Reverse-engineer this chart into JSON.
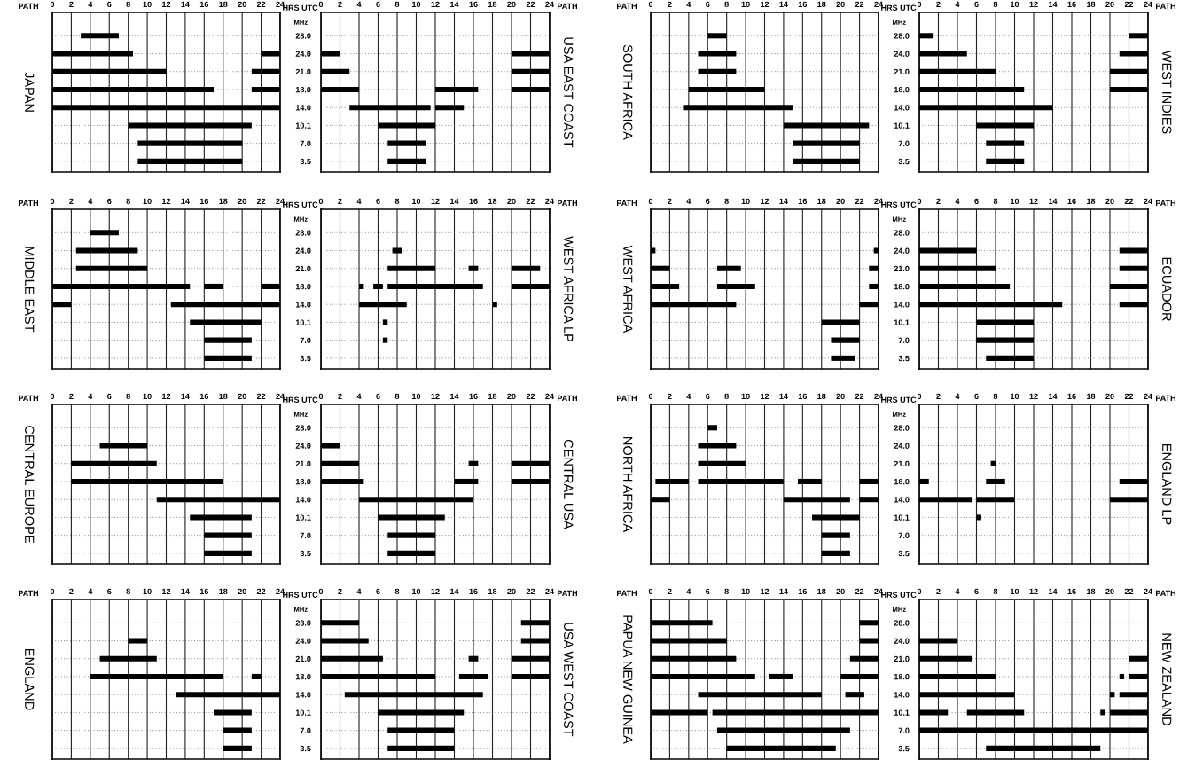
{
  "chart_data": [
    {
      "type": "bar",
      "orientation": "horizontal",
      "title": "JAPAN",
      "xlabel": "HRS UTC",
      "annotations": [
        "PATH"
      ],
      "tick_labels": "x",
      "grid": true,
      "xlim": [
        0,
        24
      ],
      "xticks": [
        0,
        2,
        4,
        6,
        8,
        10,
        12,
        14,
        16,
        18,
        20,
        22,
        24
      ],
      "categories": [
        "28.0",
        "24.0",
        "21.0",
        "18.0",
        "14.0",
        "10.1",
        "7.0",
        "3.5"
      ],
      "series": [
        {
          "color": "#000000",
          "base": [
            3,
            0,
            0,
            0,
            0,
            8,
            9,
            9
          ],
          "values": [
            4,
            8.5,
            12,
            17,
            24,
            13,
            11,
            11
          ]
        },
        {
          "color": "#000000",
          "base": [
            null,
            22,
            21,
            21,
            null,
            null,
            null,
            null
          ],
          "values": [
            null,
            2,
            3,
            3,
            null,
            null,
            null,
            null
          ]
        }
      ]
    },
    {
      "type": "bar",
      "orientation": "horizontal",
      "y2label": "USA EAST COAST",
      "ylabel": "MHz",
      "annotations": [
        "PATH"
      ],
      "grid": true,
      "xlim": [
        0,
        24
      ],
      "xticks": [
        0,
        2,
        4,
        6,
        8,
        10,
        12,
        14,
        16,
        18,
        20,
        22,
        24
      ],
      "categories": [
        "28.0",
        "24.0",
        "21.0",
        "18.0",
        "14.0",
        "10.1",
        "7.0",
        "3.5"
      ],
      "series": [
        {
          "color": "#000000",
          "base": [
            null,
            0,
            0,
            0,
            3,
            6,
            7,
            7
          ],
          "values": [
            null,
            2,
            3,
            4,
            8.5,
            6,
            4,
            4
          ]
        },
        {
          "color": "#000000",
          "base": [
            null,
            20,
            20,
            12,
            12,
            null,
            null,
            null
          ],
          "values": [
            null,
            4,
            4,
            4.5,
            3,
            null,
            null,
            null
          ]
        },
        {
          "color": "#000000",
          "base": [
            null,
            null,
            null,
            20,
            null,
            null,
            null,
            null
          ],
          "values": [
            null,
            null,
            null,
            4,
            null,
            null,
            null,
            null
          ]
        }
      ]
    },
    {
      "type": "bar",
      "orientation": "horizontal",
      "title": "SOUTH AFRICA",
      "xlabel": "HRS UTC",
      "annotations": [
        "PATH"
      ],
      "tick_labels": "x",
      "grid": true,
      "xlim": [
        0,
        24
      ],
      "xticks": [
        0,
        2,
        4,
        6,
        8,
        10,
        12,
        14,
        16,
        18,
        20,
        22,
        24
      ],
      "categories": [
        "28.0",
        "24.0",
        "21.0",
        "18.0",
        "14.0",
        "10.1",
        "7.0",
        "3.5"
      ],
      "series": [
        {
          "color": "#000000",
          "base": [
            6,
            5,
            5,
            4,
            3.5,
            14,
            15,
            15
          ],
          "values": [
            2,
            4,
            4,
            8,
            11.5,
            9,
            7,
            7
          ]
        }
      ]
    },
    {
      "type": "bar",
      "orientation": "horizontal",
      "y2label": "WEST INDIES",
      "ylabel": "MHz",
      "annotations": [
        "PATH"
      ],
      "grid": true,
      "xlim": [
        0,
        24
      ],
      "xticks": [
        0,
        2,
        4,
        6,
        8,
        10,
        12,
        14,
        16,
        18,
        20,
        22,
        24
      ],
      "categories": [
        "28.0",
        "24.0",
        "21.0",
        "18.0",
        "14.0",
        "10.1",
        "7.0",
        "3.5"
      ],
      "series": [
        {
          "color": "#000000",
          "base": [
            0,
            0,
            0,
            0,
            0,
            6,
            7,
            7
          ],
          "values": [
            1.5,
            5,
            8,
            11,
            14,
            6,
            4,
            4
          ]
        },
        {
          "color": "#000000",
          "base": [
            22,
            21,
            20,
            20,
            null,
            null,
            null,
            null
          ],
          "values": [
            2,
            3,
            4,
            4,
            null,
            null,
            null,
            null
          ]
        }
      ]
    },
    {
      "type": "bar",
      "orientation": "horizontal",
      "title": "MIDDLE EAST",
      "xlabel": "HRS UTC",
      "annotations": [
        "PATH"
      ],
      "tick_labels": "x",
      "grid": true,
      "xlim": [
        0,
        24
      ],
      "xticks": [
        0,
        2,
        4,
        6,
        8,
        10,
        12,
        14,
        16,
        18,
        20,
        22,
        24
      ],
      "categories": [
        "28.0",
        "24.0",
        "21.0",
        "18.0",
        "14.0",
        "10.1",
        "7.0",
        "3.5"
      ],
      "series": [
        {
          "color": "#000000",
          "base": [
            4,
            2.5,
            2.5,
            0,
            0,
            14.5,
            16,
            16
          ],
          "values": [
            3,
            6.5,
            7.5,
            14.5,
            2,
            7.5,
            5,
            5
          ]
        },
        {
          "color": "#000000",
          "base": [
            null,
            null,
            null,
            16,
            12.5,
            null,
            null,
            null
          ],
          "values": [
            null,
            null,
            null,
            2,
            11.5,
            null,
            null,
            null
          ]
        },
        {
          "color": "#000000",
          "base": [
            null,
            null,
            null,
            22,
            null,
            null,
            null,
            null
          ],
          "values": [
            null,
            null,
            null,
            2,
            null,
            null,
            null,
            null
          ]
        }
      ]
    },
    {
      "type": "bar",
      "orientation": "horizontal",
      "y2label": "WEST AFRICA LP",
      "ylabel": "MHz",
      "annotations": [
        "PATH"
      ],
      "grid": true,
      "xlim": [
        0,
        24
      ],
      "xticks": [
        0,
        2,
        4,
        6,
        8,
        10,
        12,
        14,
        16,
        18,
        20,
        22,
        24
      ],
      "categories": [
        "28.0",
        "24.0",
        "21.0",
        "18.0",
        "14.0",
        "10.1",
        "7.0",
        "3.5"
      ],
      "series": [
        {
          "color": "#000000",
          "base": [
            null,
            7.5,
            7,
            4,
            4,
            6.5,
            6.5,
            null
          ],
          "values": [
            null,
            1,
            5,
            0.5,
            5,
            0.5,
            0.5,
            null
          ]
        },
        {
          "color": "#000000",
          "base": [
            null,
            null,
            15.5,
            5.5,
            18,
            null,
            null,
            null
          ],
          "values": [
            null,
            null,
            1,
            1,
            0.5,
            null,
            null,
            null
          ]
        },
        {
          "color": "#000000",
          "base": [
            null,
            null,
            20,
            7,
            null,
            null,
            null,
            null
          ],
          "values": [
            null,
            null,
            3,
            10,
            null,
            null,
            null,
            null
          ]
        },
        {
          "color": "#000000",
          "base": [
            null,
            null,
            null,
            20,
            null,
            null,
            null,
            null
          ],
          "values": [
            null,
            null,
            null,
            4,
            null,
            null,
            null,
            null
          ]
        }
      ]
    },
    {
      "type": "bar",
      "orientation": "horizontal",
      "title": "WEST AFRICA",
      "xlabel": "HRS UTC",
      "annotations": [
        "PATH"
      ],
      "tick_labels": "x",
      "grid": true,
      "xlim": [
        0,
        24
      ],
      "xticks": [
        0,
        2,
        4,
        6,
        8,
        10,
        12,
        14,
        16,
        18,
        20,
        22,
        24
      ],
      "categories": [
        "28.0",
        "24.0",
        "21.0",
        "18.0",
        "14.0",
        "10.1",
        "7.0",
        "3.5"
      ],
      "series": [
        {
          "color": "#000000",
          "base": [
            null,
            0,
            0,
            0,
            0,
            18,
            19,
            19
          ],
          "values": [
            null,
            0.5,
            2,
            3,
            9,
            4,
            3,
            2.5
          ]
        },
        {
          "color": "#000000",
          "base": [
            null,
            23.5,
            7,
            7,
            22,
            null,
            null,
            null
          ],
          "values": [
            null,
            0.5,
            2.5,
            4,
            2,
            null,
            null,
            null
          ]
        },
        {
          "color": "#000000",
          "base": [
            null,
            null,
            23,
            23,
            null,
            null,
            null,
            null
          ],
          "values": [
            null,
            null,
            1,
            1,
            null,
            null,
            null,
            null
          ]
        }
      ]
    },
    {
      "type": "bar",
      "orientation": "horizontal",
      "y2label": "ECUADOR",
      "ylabel": "MHz",
      "annotations": [
        "PATH"
      ],
      "grid": true,
      "xlim": [
        0,
        24
      ],
      "xticks": [
        0,
        2,
        4,
        6,
        8,
        10,
        12,
        14,
        16,
        18,
        20,
        22,
        24
      ],
      "categories": [
        "28.0",
        "24.0",
        "21.0",
        "18.0",
        "14.0",
        "10.1",
        "7.0",
        "3.5"
      ],
      "series": [
        {
          "color": "#000000",
          "base": [
            null,
            0,
            0,
            0,
            0,
            6,
            6,
            7
          ],
          "values": [
            null,
            6,
            8,
            9.5,
            15,
            6,
            6,
            5
          ]
        },
        {
          "color": "#000000",
          "base": [
            null,
            21,
            21,
            20,
            21,
            null,
            null,
            null
          ],
          "values": [
            null,
            3,
            3,
            4,
            3,
            null,
            null,
            null
          ]
        }
      ]
    },
    {
      "type": "bar",
      "orientation": "horizontal",
      "title": "CENTRAL EUROPE",
      "xlabel": "HRS UTC",
      "annotations": [
        "PATH"
      ],
      "tick_labels": "x",
      "grid": true,
      "xlim": [
        0,
        24
      ],
      "xticks": [
        0,
        2,
        4,
        6,
        8,
        10,
        12,
        14,
        16,
        18,
        20,
        22,
        24
      ],
      "categories": [
        "28.0",
        "24.0",
        "21.0",
        "18.0",
        "14.0",
        "10.1",
        "7.0",
        "3.5"
      ],
      "series": [
        {
          "color": "#000000",
          "base": [
            null,
            5,
            2,
            2,
            11,
            14.5,
            16,
            16
          ],
          "values": [
            null,
            5,
            9,
            16,
            13,
            6.5,
            5,
            5
          ]
        }
      ]
    },
    {
      "type": "bar",
      "orientation": "horizontal",
      "y2label": "CENTRAL USA",
      "ylabel": "MHz",
      "annotations": [
        "PATH"
      ],
      "grid": true,
      "xlim": [
        0,
        24
      ],
      "xticks": [
        0,
        2,
        4,
        6,
        8,
        10,
        12,
        14,
        16,
        18,
        20,
        22,
        24
      ],
      "categories": [
        "28.0",
        "24.0",
        "21.0",
        "18.0",
        "14.0",
        "10.1",
        "7.0",
        "3.5"
      ],
      "series": [
        {
          "color": "#000000",
          "base": [
            null,
            0,
            0,
            0,
            4,
            6,
            7,
            7
          ],
          "values": [
            null,
            2,
            4,
            4.5,
            12,
            7,
            5,
            5
          ]
        },
        {
          "color": "#000000",
          "base": [
            null,
            null,
            15.5,
            14,
            null,
            null,
            null,
            null
          ],
          "values": [
            null,
            null,
            1,
            2.5,
            null,
            null,
            null,
            null
          ]
        },
        {
          "color": "#000000",
          "base": [
            null,
            null,
            20,
            20,
            null,
            null,
            null,
            null
          ],
          "values": [
            null,
            null,
            4,
            4,
            null,
            null,
            null,
            null
          ]
        }
      ]
    },
    {
      "type": "bar",
      "orientation": "horizontal",
      "title": "NORTH AFRICA",
      "xlabel": "HRS UTC",
      "annotations": [
        "PATH"
      ],
      "tick_labels": "x",
      "grid": true,
      "xlim": [
        0,
        24
      ],
      "xticks": [
        0,
        2,
        4,
        6,
        8,
        10,
        12,
        14,
        16,
        18,
        20,
        22,
        24
      ],
      "categories": [
        "28.0",
        "24.0",
        "21.0",
        "18.0",
        "14.0",
        "10.1",
        "7.0",
        "3.5"
      ],
      "series": [
        {
          "color": "#000000",
          "base": [
            6,
            5,
            5,
            0.5,
            0,
            17,
            18,
            18
          ],
          "values": [
            1,
            4,
            5,
            3.5,
            2,
            5,
            3,
            3
          ]
        },
        {
          "color": "#000000",
          "base": [
            null,
            null,
            null,
            5,
            14,
            null,
            null,
            null
          ],
          "values": [
            null,
            null,
            null,
            9,
            7,
            null,
            null,
            null
          ]
        },
        {
          "color": "#000000",
          "base": [
            null,
            null,
            null,
            15.5,
            22,
            null,
            null,
            null
          ],
          "values": [
            null,
            null,
            null,
            2.5,
            2,
            null,
            null,
            null
          ]
        },
        {
          "color": "#000000",
          "base": [
            null,
            null,
            null,
            22,
            null,
            null,
            null,
            null
          ],
          "values": [
            null,
            null,
            null,
            2,
            null,
            null,
            null,
            null
          ]
        }
      ]
    },
    {
      "type": "bar",
      "orientation": "horizontal",
      "y2label": "ENGLAND LP",
      "ylabel": "MHz",
      "annotations": [
        "PATH"
      ],
      "grid": true,
      "xlim": [
        0,
        24
      ],
      "xticks": [
        0,
        2,
        4,
        6,
        8,
        10,
        12,
        14,
        16,
        18,
        20,
        22,
        24
      ],
      "categories": [
        "28.0",
        "24.0",
        "21.0",
        "18.0",
        "14.0",
        "10.1",
        "7.0",
        "3.5"
      ],
      "series": [
        {
          "color": "#000000",
          "base": [
            null,
            null,
            7.5,
            0,
            0,
            6,
            null,
            null
          ],
          "values": [
            null,
            null,
            0.5,
            1,
            5.5,
            0.5,
            null,
            null
          ]
        },
        {
          "color": "#000000",
          "base": [
            null,
            null,
            null,
            7,
            6,
            null,
            null,
            null
          ],
          "values": [
            null,
            null,
            null,
            2,
            4,
            null,
            null,
            null
          ]
        },
        {
          "color": "#000000",
          "base": [
            null,
            null,
            null,
            21,
            20,
            null,
            null,
            null
          ],
          "values": [
            null,
            null,
            null,
            3,
            4,
            null,
            null,
            null
          ]
        }
      ]
    },
    {
      "type": "bar",
      "orientation": "horizontal",
      "title": "ENGLAND",
      "xlabel": "HRS UTC",
      "annotations": [
        "PATH"
      ],
      "tick_labels": "x",
      "grid": true,
      "xlim": [
        0,
        24
      ],
      "xticks": [
        0,
        2,
        4,
        6,
        8,
        10,
        12,
        14,
        16,
        18,
        20,
        22,
        24
      ],
      "categories": [
        "28.0",
        "24.0",
        "21.0",
        "18.0",
        "14.0",
        "10.1",
        "7.0",
        "3.5"
      ],
      "series": [
        {
          "color": "#000000",
          "base": [
            null,
            8,
            5,
            4,
            13,
            17,
            18,
            18
          ],
          "values": [
            null,
            2,
            6,
            14,
            11,
            4,
            3,
            3
          ]
        },
        {
          "color": "#000000",
          "base": [
            null,
            null,
            null,
            21,
            null,
            null,
            null,
            null
          ],
          "values": [
            null,
            null,
            null,
            1,
            null,
            null,
            null,
            null
          ]
        }
      ]
    },
    {
      "type": "bar",
      "orientation": "horizontal",
      "y2label": "USA WEST COAST",
      "ylabel": "MHz",
      "annotations": [
        "PATH"
      ],
      "grid": true,
      "xlim": [
        0,
        24
      ],
      "xticks": [
        0,
        2,
        4,
        6,
        8,
        10,
        12,
        14,
        16,
        18,
        20,
        22,
        24
      ],
      "categories": [
        "28.0",
        "24.0",
        "21.0",
        "18.0",
        "14.0",
        "10.1",
        "7.0",
        "3.5"
      ],
      "series": [
        {
          "color": "#000000",
          "base": [
            0,
            0,
            0,
            0,
            2.5,
            6,
            7,
            7
          ],
          "values": [
            4,
            5,
            6.5,
            12,
            14.5,
            9,
            7,
            7
          ]
        },
        {
          "color": "#000000",
          "base": [
            21,
            21,
            15.5,
            14.5,
            null,
            null,
            null,
            null
          ],
          "values": [
            3,
            3,
            1,
            3,
            null,
            null,
            null,
            null
          ]
        },
        {
          "color": "#000000",
          "base": [
            null,
            null,
            20,
            20,
            null,
            null,
            null,
            null
          ],
          "values": [
            null,
            null,
            4,
            4,
            null,
            null,
            null,
            null
          ]
        }
      ]
    },
    {
      "type": "bar",
      "orientation": "horizontal",
      "title": "PAPUA NEW GUINEA",
      "xlabel": "HRS UTC",
      "annotations": [
        "PATH"
      ],
      "tick_labels": "x",
      "grid": true,
      "xlim": [
        0,
        24
      ],
      "xticks": [
        0,
        2,
        4,
        6,
        8,
        10,
        12,
        14,
        16,
        18,
        20,
        22,
        24
      ],
      "categories": [
        "28.0",
        "24.0",
        "21.0",
        "18.0",
        "14.0",
        "10.1",
        "7.0",
        "3.5"
      ],
      "series": [
        {
          "color": "#000000",
          "base": [
            0,
            0,
            0,
            0,
            5,
            0,
            7,
            8
          ],
          "values": [
            6.5,
            8,
            9,
            11,
            13,
            6,
            14,
            11.5
          ]
        },
        {
          "color": "#000000",
          "base": [
            22,
            22,
            21,
            12.5,
            20.5,
            6.5,
            null,
            null
          ],
          "values": [
            2,
            2,
            3,
            2.5,
            2,
            17.5,
            null,
            null
          ]
        },
        {
          "color": "#000000",
          "base": [
            null,
            null,
            null,
            20,
            null,
            null,
            null,
            null
          ],
          "values": [
            null,
            null,
            null,
            4,
            null,
            null,
            null,
            null
          ]
        }
      ]
    },
    {
      "type": "bar",
      "orientation": "horizontal",
      "y2label": "NEW ZEALAND",
      "ylabel": "MHz",
      "annotations": [
        "PATH"
      ],
      "grid": true,
      "xlim": [
        0,
        24
      ],
      "xticks": [
        0,
        2,
        4,
        6,
        8,
        10,
        12,
        14,
        16,
        18,
        20,
        22,
        24
      ],
      "categories": [
        "28.0",
        "24.0",
        "21.0",
        "18.0",
        "14.0",
        "10.1",
        "7.0",
        "3.5"
      ],
      "series": [
        {
          "color": "#000000",
          "base": [
            null,
            0,
            0,
            0,
            0,
            0,
            0,
            7
          ],
          "values": [
            null,
            4,
            5.5,
            8,
            10,
            3,
            24,
            12
          ]
        },
        {
          "color": "#000000",
          "base": [
            null,
            null,
            22,
            21,
            20,
            5,
            null,
            null
          ],
          "values": [
            null,
            null,
            2,
            0.5,
            0.5,
            6,
            null,
            null
          ]
        },
        {
          "color": "#000000",
          "base": [
            null,
            null,
            null,
            22,
            21,
            19,
            null,
            null
          ],
          "values": [
            null,
            null,
            null,
            2,
            3,
            0.5,
            null,
            null
          ]
        },
        {
          "color": "#000000",
          "base": [
            null,
            null,
            null,
            null,
            null,
            20,
            null,
            null
          ],
          "values": [
            null,
            null,
            null,
            null,
            null,
            4,
            null,
            null
          ]
        }
      ]
    }
  ]
}
